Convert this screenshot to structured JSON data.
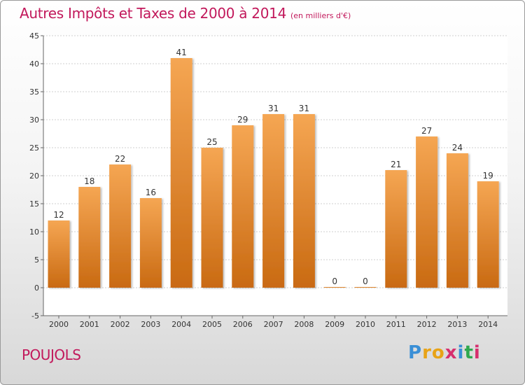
{
  "title": "Autres Impôts et Taxes de 2000 à 2014",
  "subtitle": "(en milliers d'€)",
  "place_name": "POUJOLS",
  "logo": {
    "letters": [
      "P",
      "r",
      "o",
      "x",
      "i",
      "t",
      "i"
    ],
    "colors": [
      "#3a8fd6",
      "#e8a317",
      "#e8a317",
      "#d62f6e",
      "#3a8fd6",
      "#2fa84f",
      "#d62f6e"
    ]
  },
  "colors": {
    "bar_top": "#f5a653",
    "bar_bottom": "#c96a12",
    "title": "#c2185b"
  },
  "chart_data": {
    "type": "bar",
    "categories": [
      "2000",
      "2001",
      "2002",
      "2003",
      "2004",
      "2005",
      "2006",
      "2007",
      "2008",
      "2009",
      "2010",
      "2011",
      "2012",
      "2013",
      "2014"
    ],
    "values": [
      12,
      18,
      22,
      16,
      41,
      25,
      29,
      31,
      31,
      0,
      0,
      21,
      27,
      24,
      19
    ],
    "title": "Autres Impôts et Taxes de 2000 à 2014",
    "subtitle": "(en milliers d'€)",
    "xlabel": "",
    "ylabel": "",
    "ylim": [
      -5,
      45
    ],
    "yticks": [
      -5,
      0,
      5,
      10,
      15,
      20,
      25,
      30,
      35,
      40,
      45
    ],
    "grid": true,
    "legend": "none"
  }
}
